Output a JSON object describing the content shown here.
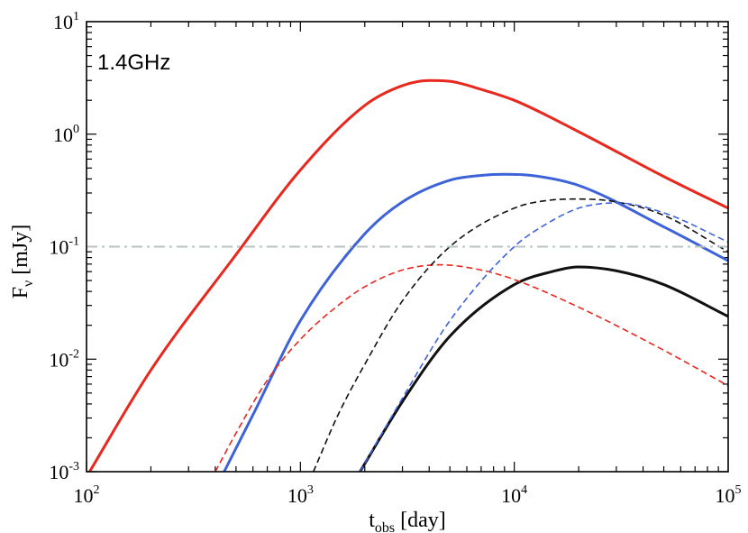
{
  "chart_data": {
    "type": "line",
    "annotation": "1.4GHz",
    "xlabel": {
      "base": "t",
      "sub": "obs",
      "rest": " [day]"
    },
    "ylabel": {
      "base": "F",
      "sub": "ν",
      "rest": " [mJy]"
    },
    "xscale": "log",
    "yscale": "log",
    "xlim": [
      100,
      100000
    ],
    "ylim": [
      0.001,
      10
    ],
    "x_ticks": [
      {
        "value": 100,
        "base": "10",
        "exp": "2"
      },
      {
        "value": 1000,
        "base": "10",
        "exp": "3"
      },
      {
        "value": 10000,
        "base": "10",
        "exp": "4"
      },
      {
        "value": 100000,
        "base": "10",
        "exp": "5"
      }
    ],
    "y_ticks": [
      {
        "value": 0.001,
        "base": "10",
        "exp": "-3"
      },
      {
        "value": 0.01,
        "base": "10",
        "exp": "-2"
      },
      {
        "value": 0.1,
        "base": "10",
        "exp": "-1"
      },
      {
        "value": 1,
        "base": "10",
        "exp": "0"
      },
      {
        "value": 10,
        "base": "10",
        "exp": "1"
      }
    ],
    "colors": {
      "red": "#e8281e",
      "blue": "#3e63d8",
      "black": "#111111",
      "threshold": "#b8c4c4"
    },
    "series": [
      {
        "color": "red",
        "style": "solid",
        "x": [
          100,
          200,
          500,
          1000,
          2000,
          3000,
          4000,
          5000,
          7000,
          10000,
          20000,
          50000,
          100000
        ],
        "y": [
          0.0009,
          0.008,
          0.085,
          0.48,
          1.8,
          2.7,
          3.0,
          2.95,
          2.5,
          2.0,
          1.05,
          0.42,
          0.22
        ]
      },
      {
        "color": "blue",
        "style": "solid",
        "x": [
          440,
          600,
          1000,
          2000,
          3000,
          5000,
          7000,
          9000,
          12000,
          20000,
          50000,
          100000
        ],
        "y": [
          0.001,
          0.0032,
          0.022,
          0.13,
          0.25,
          0.39,
          0.43,
          0.44,
          0.43,
          0.35,
          0.15,
          0.075
        ]
      },
      {
        "color": "black",
        "style": "solid",
        "x": [
          1900,
          3000,
          5000,
          10000,
          15000,
          20000,
          30000,
          50000,
          100000
        ],
        "y": [
          0.001,
          0.0042,
          0.016,
          0.046,
          0.06,
          0.066,
          0.061,
          0.046,
          0.024
        ]
      },
      {
        "color": "red",
        "style": "dashed",
        "x": [
          400,
          500,
          700,
          1000,
          1500,
          2000,
          3000,
          4500,
          7000,
          10000,
          20000,
          50000,
          100000
        ],
        "y": [
          0.001,
          0.0022,
          0.0065,
          0.015,
          0.03,
          0.044,
          0.062,
          0.069,
          0.062,
          0.051,
          0.029,
          0.012,
          0.0058
        ]
      },
      {
        "color": "black",
        "style": "dashed",
        "x": [
          1150,
          1500,
          2000,
          3000,
          5000,
          10000,
          15000,
          20000,
          30000,
          50000,
          100000
        ],
        "y": [
          0.001,
          0.0032,
          0.009,
          0.033,
          0.1,
          0.22,
          0.26,
          0.265,
          0.25,
          0.19,
          0.09
        ]
      },
      {
        "color": "blue",
        "style": "dashed",
        "x": [
          1900,
          3000,
          5000,
          10000,
          15000,
          20000,
          25000,
          30000,
          50000,
          100000
        ],
        "y": [
          0.001,
          0.0045,
          0.022,
          0.1,
          0.17,
          0.22,
          0.24,
          0.245,
          0.2,
          0.11
        ]
      },
      {
        "color": "threshold",
        "style": "dashdot",
        "x": [
          100,
          100000
        ],
        "y": [
          0.1,
          0.1
        ]
      }
    ]
  }
}
